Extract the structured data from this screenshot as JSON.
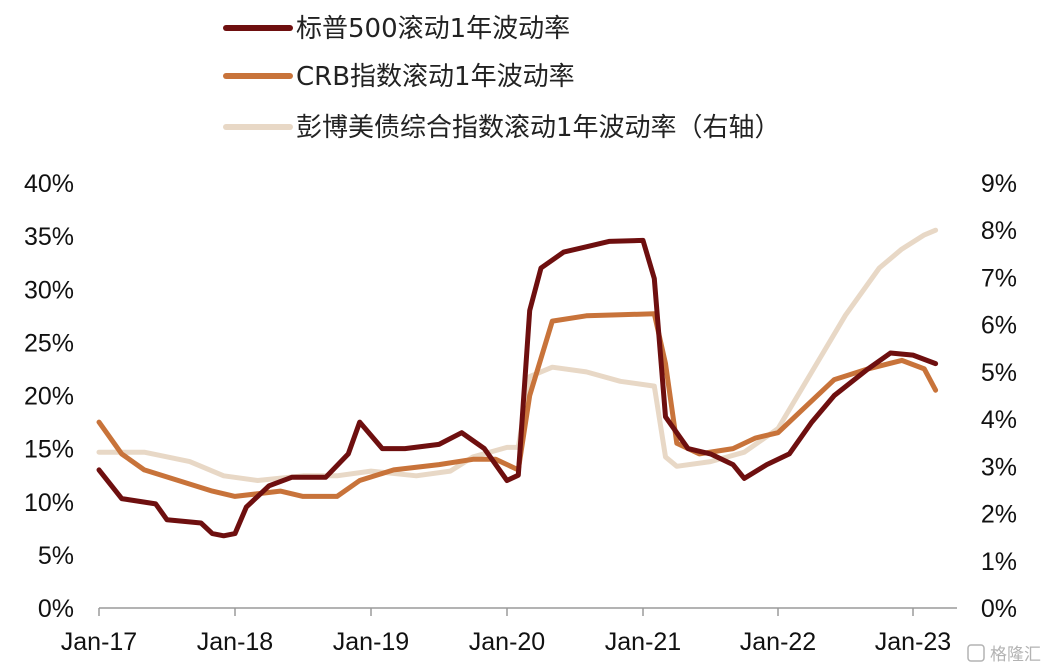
{
  "chart_data": {
    "type": "line",
    "title": "",
    "legend_position": "top-center",
    "grid": false,
    "x_tick_labels": [
      "Jan-17",
      "Jan-18",
      "Jan-19",
      "Jan-20",
      "Jan-21",
      "Jan-22",
      "Jan-23"
    ],
    "xlim": [
      "2017-01",
      "2023-04"
    ],
    "y_left": {
      "ylim": [
        0,
        40
      ],
      "tick_labels": [
        "0%",
        "5%",
        "10%",
        "15%",
        "20%",
        "25%",
        "30%",
        "35%",
        "40%"
      ]
    },
    "y_right": {
      "ylim": [
        0,
        9
      ],
      "tick_labels": [
        "0%",
        "1%",
        "2%",
        "3%",
        "4%",
        "5%",
        "6%",
        "7%",
        "8%",
        "9%"
      ]
    },
    "series": [
      {
        "name": "标普500滚动1年波动率",
        "axis": "left",
        "color": "#6e0f0f",
        "points": [
          [
            "2017-01",
            13.0
          ],
          [
            "2017-03",
            10.3
          ],
          [
            "2017-06",
            9.8
          ],
          [
            "2017-07",
            8.3
          ],
          [
            "2017-10",
            8.0
          ],
          [
            "2017-11",
            7.0
          ],
          [
            "2017-12",
            6.8
          ],
          [
            "2018-01",
            7.0
          ],
          [
            "2018-02",
            9.5
          ],
          [
            "2018-04",
            11.5
          ],
          [
            "2018-06",
            12.3
          ],
          [
            "2018-09",
            12.3
          ],
          [
            "2018-11",
            14.5
          ],
          [
            "2018-12",
            17.5
          ],
          [
            "2019-02",
            15.0
          ],
          [
            "2019-04",
            15.0
          ],
          [
            "2019-07",
            15.4
          ],
          [
            "2019-09",
            16.5
          ],
          [
            "2019-11",
            15.0
          ],
          [
            "2020-01",
            12.0
          ],
          [
            "2020-02",
            12.5
          ],
          [
            "2020-03",
            28.0
          ],
          [
            "2020-04",
            32.0
          ],
          [
            "2020-06",
            33.5
          ],
          [
            "2020-08",
            34.0
          ],
          [
            "2020-10",
            34.5
          ],
          [
            "2021-01",
            34.6
          ],
          [
            "2021-02",
            31.0
          ],
          [
            "2021-03",
            18.0
          ],
          [
            "2021-05",
            15.0
          ],
          [
            "2021-07",
            14.5
          ],
          [
            "2021-09",
            13.5
          ],
          [
            "2021-10",
            12.2
          ],
          [
            "2021-12",
            13.5
          ],
          [
            "2022-02",
            14.5
          ],
          [
            "2022-04",
            17.5
          ],
          [
            "2022-06",
            20.0
          ],
          [
            "2022-09",
            22.5
          ],
          [
            "2022-11",
            24.0
          ],
          [
            "2023-01",
            23.8
          ],
          [
            "2023-03",
            23.0
          ]
        ]
      },
      {
        "name": "CRB指数滚动1年波动率",
        "axis": "left",
        "color": "#c8733a",
        "points": [
          [
            "2017-01",
            17.5
          ],
          [
            "2017-03",
            14.5
          ],
          [
            "2017-05",
            13.0
          ],
          [
            "2017-08",
            12.0
          ],
          [
            "2017-11",
            11.0
          ],
          [
            "2018-01",
            10.5
          ],
          [
            "2018-05",
            11.0
          ],
          [
            "2018-07",
            10.5
          ],
          [
            "2018-10",
            10.5
          ],
          [
            "2018-12",
            12.0
          ],
          [
            "2019-03",
            13.0
          ],
          [
            "2019-07",
            13.5
          ],
          [
            "2019-10",
            14.0
          ],
          [
            "2019-12",
            14.0
          ],
          [
            "2020-02",
            13.0
          ],
          [
            "2020-03",
            20.0
          ],
          [
            "2020-05",
            27.0
          ],
          [
            "2020-08",
            27.5
          ],
          [
            "2020-11",
            27.6
          ],
          [
            "2021-02",
            27.7
          ],
          [
            "2021-03",
            23.0
          ],
          [
            "2021-04",
            15.5
          ],
          [
            "2021-06",
            14.5
          ],
          [
            "2021-09",
            15.0
          ],
          [
            "2021-11",
            16.0
          ],
          [
            "2022-01",
            16.5
          ],
          [
            "2022-03",
            18.5
          ],
          [
            "2022-06",
            21.5
          ],
          [
            "2022-09",
            22.5
          ],
          [
            "2022-12",
            23.3
          ],
          [
            "2023-02",
            22.5
          ],
          [
            "2023-03",
            20.5
          ]
        ]
      },
      {
        "name": "彭博美债综合指数滚动1年波动率（右轴）",
        "axis": "right",
        "color": "#e8d8c6",
        "points": [
          [
            "2017-01",
            3.3
          ],
          [
            "2017-05",
            3.3
          ],
          [
            "2017-09",
            3.1
          ],
          [
            "2017-12",
            2.8
          ],
          [
            "2018-03",
            2.7
          ],
          [
            "2018-07",
            2.8
          ],
          [
            "2018-10",
            2.8
          ],
          [
            "2019-01",
            2.9
          ],
          [
            "2019-05",
            2.8
          ],
          [
            "2019-08",
            2.9
          ],
          [
            "2019-10",
            3.2
          ],
          [
            "2020-01",
            3.4
          ],
          [
            "2020-02",
            3.4
          ],
          [
            "2020-03",
            4.9
          ],
          [
            "2020-05",
            5.1
          ],
          [
            "2020-08",
            5.0
          ],
          [
            "2020-11",
            4.8
          ],
          [
            "2021-02",
            4.7
          ],
          [
            "2021-03",
            3.2
          ],
          [
            "2021-04",
            3.0
          ],
          [
            "2021-07",
            3.1
          ],
          [
            "2021-10",
            3.3
          ],
          [
            "2022-01",
            3.8
          ],
          [
            "2022-04",
            5.0
          ],
          [
            "2022-07",
            6.2
          ],
          [
            "2022-10",
            7.2
          ],
          [
            "2022-12",
            7.6
          ],
          [
            "2023-02",
            7.9
          ],
          [
            "2023-03",
            8.0
          ]
        ]
      }
    ]
  },
  "watermark": "格隆汇"
}
